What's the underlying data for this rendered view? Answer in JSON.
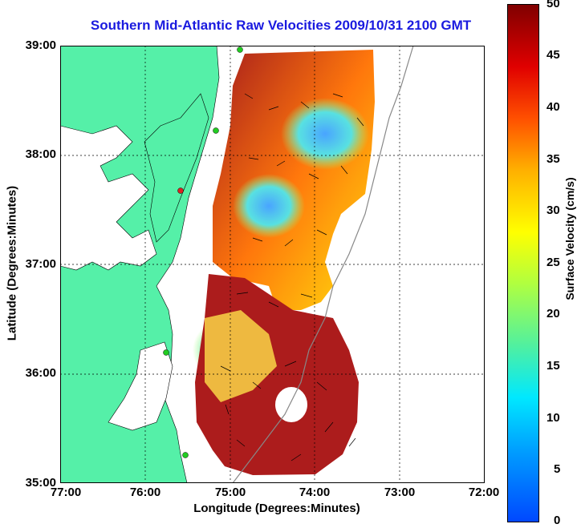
{
  "title": "Southern Mid-Atlantic Raw Velocities 2009/10/31 2100 GMT",
  "axes": {
    "xlabel": "Longitude (Degrees:Minutes)",
    "ylabel": "Latitude (Degrees:Minutes)",
    "xticks": [
      "77:00",
      "76:00",
      "75:00",
      "74:00",
      "73:00",
      "72:00"
    ],
    "yticks": [
      "39:00",
      "38:00",
      "37:00",
      "36:00",
      "35:00"
    ],
    "grid": "dotted"
  },
  "colorbar": {
    "label": "Surface Velocity (cm/s)",
    "ticks": [
      "50",
      "45",
      "40",
      "35",
      "30",
      "25",
      "20",
      "15",
      "10",
      "5",
      "0"
    ],
    "min": 0,
    "max": 50
  },
  "colors": {
    "land": "#55f0a8",
    "title": "#1a1adf",
    "station_green": "#22cc22",
    "station_red": "#dd2222"
  }
}
